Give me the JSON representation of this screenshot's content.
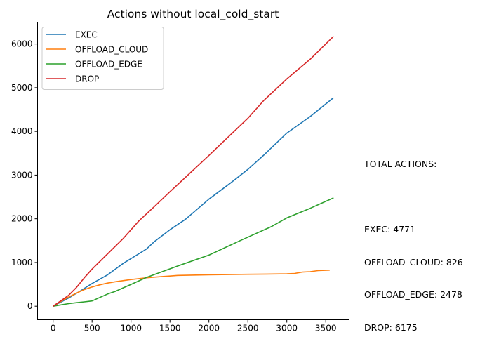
{
  "chart_data": {
    "type": "line",
    "title": "Actions without local_cold_start",
    "xlabel": "",
    "ylabel": "",
    "xlim": [
      -200,
      3800
    ],
    "ylim": [
      -310,
      6500
    ],
    "x_ticks": [
      0,
      500,
      1000,
      1500,
      2000,
      2500,
      3000,
      3500
    ],
    "y_ticks": [
      0,
      1000,
      2000,
      3000,
      4000,
      5000,
      6000
    ],
    "grid": false,
    "legend_position": "upper-left",
    "series": [
      {
        "name": "EXEC",
        "color": "#1f77b4",
        "x": [
          0,
          200,
          350,
          500,
          700,
          900,
          1100,
          1200,
          1300,
          1500,
          1700,
          2000,
          2300,
          2500,
          2700,
          3000,
          3300,
          3600
        ],
        "y": [
          0,
          190,
          350,
          520,
          720,
          980,
          1200,
          1310,
          1480,
          1750,
          1990,
          2450,
          2850,
          3130,
          3450,
          3960,
          4340,
          4771
        ]
      },
      {
        "name": "OFFLOAD_CLOUD",
        "color": "#ff7f0e",
        "x": [
          0,
          100,
          200,
          300,
          400,
          500,
          600,
          700,
          800,
          1000,
          1200,
          1400,
          1500,
          1600,
          2000,
          2500,
          3000,
          3100,
          3200,
          3300,
          3400,
          3550
        ],
        "y": [
          0,
          110,
          210,
          300,
          380,
          440,
          490,
          530,
          560,
          610,
          650,
          680,
          690,
          705,
          720,
          730,
          740,
          750,
          780,
          790,
          815,
          826
        ]
      },
      {
        "name": "OFFLOAD_EDGE",
        "color": "#2ca02c",
        "x": [
          0,
          100,
          200,
          300,
          400,
          500,
          600,
          700,
          800,
          900,
          1000,
          1100,
          1200,
          1400,
          1600,
          2000,
          2400,
          2800,
          3000,
          3300,
          3600
        ],
        "y": [
          0,
          30,
          60,
          80,
          100,
          120,
          200,
          280,
          340,
          420,
          500,
          580,
          660,
          790,
          920,
          1170,
          1500,
          1820,
          2020,
          2240,
          2478
        ]
      },
      {
        "name": "DROP",
        "color": "#d62728",
        "x": [
          0,
          200,
          300,
          400,
          500,
          700,
          900,
          1100,
          1300,
          1500,
          1700,
          2000,
          2200,
          2500,
          2700,
          3000,
          3300,
          3600
        ],
        "y": [
          0,
          250,
          430,
          650,
          850,
          1200,
          1550,
          1950,
          2280,
          2620,
          2950,
          3450,
          3790,
          4300,
          4700,
          5200,
          5650,
          6175
        ]
      }
    ]
  },
  "side_annotation": {
    "heading": "TOTAL ACTIONS:",
    "lines": [
      "EXEC: 4771",
      "OFFLOAD_CLOUD: 826",
      "OFFLOAD_EDGE: 2478",
      "DROP: 6175"
    ]
  }
}
